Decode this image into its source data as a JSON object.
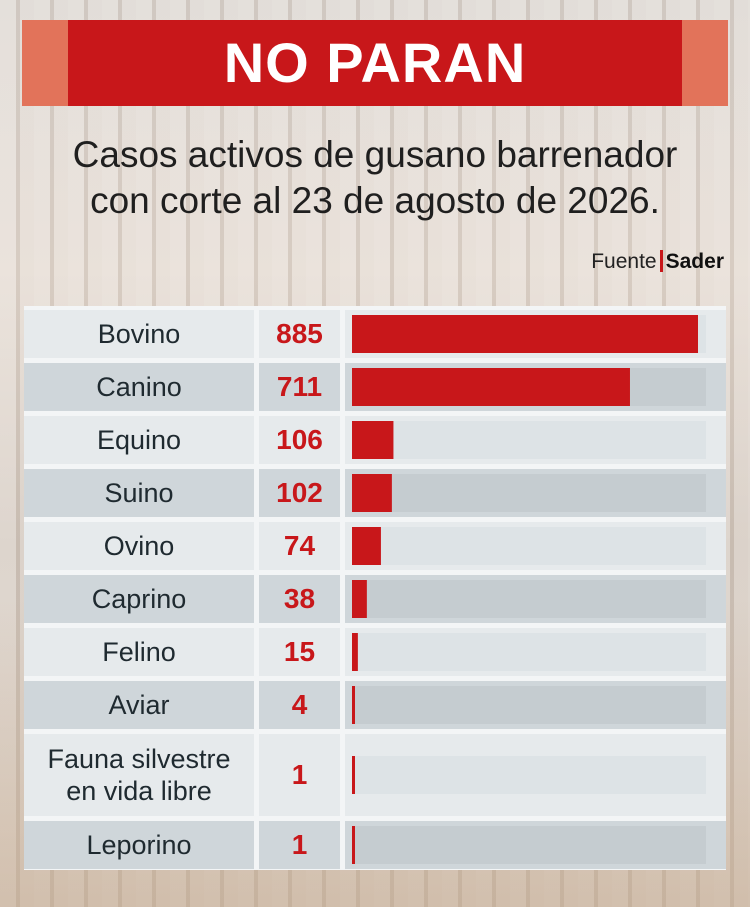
{
  "title": "NO PARAN",
  "subtitle_lines": [
    "Casos activos de gusano barrenador",
    "con corte al 23 de agosto de 2026."
  ],
  "source": {
    "prefix": "Fuente",
    "name": "Sader"
  },
  "colors": {
    "accent": "#c8171a",
    "cap": "#e2735a",
    "row_light": "#e6eaec",
    "row_dark": "#cfd6da",
    "track_light": "#dde3e6",
    "track_dark": "#c5ccd0"
  },
  "chart_data": {
    "type": "bar",
    "orientation": "horizontal",
    "categories": [
      "Bovino",
      "Canino",
      "Equino",
      "Suino",
      "Ovino",
      "Caprino",
      "Felino",
      "Aviar",
      "Fauna silvestre en vida libre",
      "Leporino"
    ],
    "category_lines": [
      [
        "Bovino"
      ],
      [
        "Canino"
      ],
      [
        "Equino"
      ],
      [
        "Suino"
      ],
      [
        "Ovino"
      ],
      [
        "Caprino"
      ],
      [
        "Felino"
      ],
      [
        "Aviar"
      ],
      [
        "Fauna silvestre",
        "en vida libre"
      ],
      [
        "Leporino"
      ]
    ],
    "values": [
      885,
      711,
      106,
      102,
      74,
      38,
      15,
      4,
      1,
      1
    ],
    "value_labels": [
      "885",
      "711",
      "106",
      "102",
      "74",
      "38",
      "15",
      "4",
      "1",
      "1"
    ],
    "xlim": [
      0,
      885
    ]
  }
}
